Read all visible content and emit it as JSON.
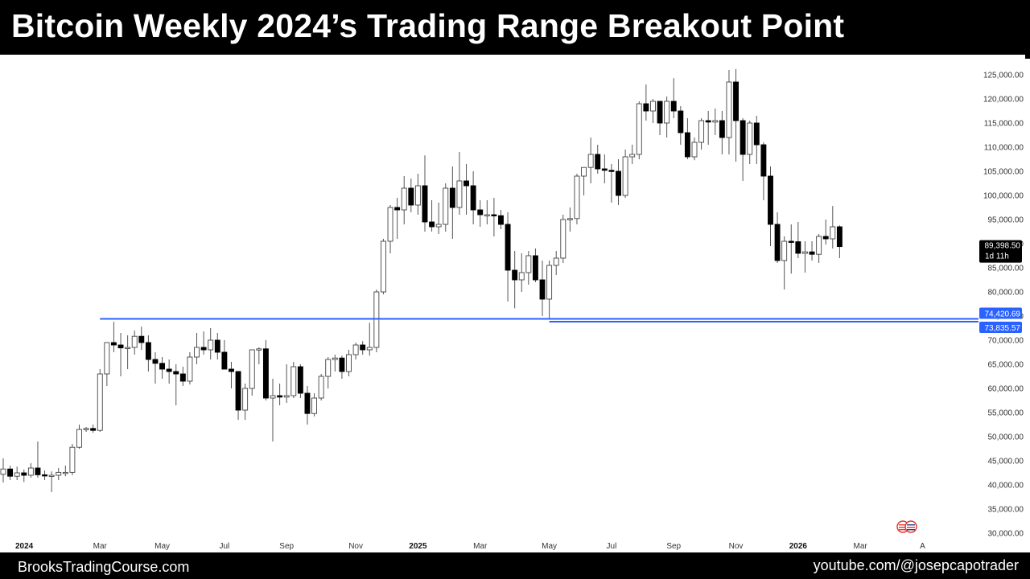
{
  "header": {
    "title": "Bitcoin Weekly 2024’s Trading Range Breakout Point"
  },
  "footer": {
    "left": "BrooksTradingCourse.com",
    "right": "youtube.com/@josepcapotrader"
  },
  "colors": {
    "bull": "#ffffff",
    "bear": "#000000",
    "wick": "#555555",
    "level": "#2962ff",
    "price_badge": "#000000",
    "level_badge": "#2962ff"
  },
  "chart_data": {
    "type": "candlestick",
    "title": "Bitcoin Weekly 2024’s Trading Range Breakout Point",
    "ylim": [
      30000,
      125000
    ],
    "y_ticks": [
      "125,000.00",
      "120,000.00",
      "115,000.00",
      "110,000.00",
      "105,000.00",
      "100,000.00",
      "95,000.00",
      "90,000.00",
      "85,000.00",
      "80,000.00",
      "75,000.00",
      "70,000.00",
      "65,000.00",
      "60,000.00",
      "55,000.00",
      "50,000.00",
      "45,000.00",
      "40,000.00",
      "35,000.00",
      "30,000.00"
    ],
    "x_ticks": [
      {
        "label": "2024",
        "week": 1,
        "bold": true
      },
      {
        "label": "Mar",
        "week": 14,
        "bold": false
      },
      {
        "label": "May",
        "week": 23,
        "bold": false
      },
      {
        "label": "Jul",
        "week": 32,
        "bold": false
      },
      {
        "label": "Sep",
        "week": 41,
        "bold": false
      },
      {
        "label": "Nov",
        "week": 51,
        "bold": false
      },
      {
        "label": "2025",
        "week": 60,
        "bold": true
      },
      {
        "label": "Mar",
        "week": 69,
        "bold": false
      },
      {
        "label": "May",
        "week": 79,
        "bold": false
      },
      {
        "label": "Jul",
        "week": 88,
        "bold": false
      },
      {
        "label": "Sep",
        "week": 97,
        "bold": false
      },
      {
        "label": "Nov",
        "week": 106,
        "bold": false
      },
      {
        "label": "2026",
        "week": 115,
        "bold": true
      },
      {
        "label": "Mar",
        "week": 124,
        "bold": false
      },
      {
        "label": "A",
        "week": 133,
        "bold": false
      }
    ],
    "candles": [
      {
        "o": 42200,
        "h": 45500,
        "l": 40500,
        "c": 43300
      },
      {
        "o": 43300,
        "h": 44000,
        "l": 41000,
        "c": 41800
      },
      {
        "o": 41800,
        "h": 43800,
        "l": 41000,
        "c": 42500
      },
      {
        "o": 42500,
        "h": 43200,
        "l": 40600,
        "c": 42000
      },
      {
        "o": 42000,
        "h": 44500,
        "l": 41500,
        "c": 43500
      },
      {
        "o": 43500,
        "h": 49000,
        "l": 41500,
        "c": 42100
      },
      {
        "o": 42100,
        "h": 43000,
        "l": 41000,
        "c": 41900
      },
      {
        "o": 41900,
        "h": 42800,
        "l": 38500,
        "c": 42000
      },
      {
        "o": 42000,
        "h": 43500,
        "l": 41000,
        "c": 42600
      },
      {
        "o": 42600,
        "h": 44000,
        "l": 41800,
        "c": 42600
      },
      {
        "o": 42600,
        "h": 48500,
        "l": 42000,
        "c": 47800
      },
      {
        "o": 47800,
        "h": 52500,
        "l": 47500,
        "c": 51500
      },
      {
        "o": 51500,
        "h": 52000,
        "l": 51000,
        "c": 51700
      },
      {
        "o": 51700,
        "h": 52500,
        "l": 50800,
        "c": 51300
      },
      {
        "o": 51300,
        "h": 64000,
        "l": 51000,
        "c": 63000
      },
      {
        "o": 63000,
        "h": 69000,
        "l": 60500,
        "c": 69500
      },
      {
        "o": 69500,
        "h": 73800,
        "l": 67500,
        "c": 69000
      },
      {
        "o": 69000,
        "h": 71500,
        "l": 62500,
        "c": 68400
      },
      {
        "o": 68400,
        "h": 71000,
        "l": 64000,
        "c": 68500
      },
      {
        "o": 68500,
        "h": 72000,
        "l": 67000,
        "c": 70800
      },
      {
        "o": 70800,
        "h": 72800,
        "l": 68000,
        "c": 69500
      },
      {
        "o": 69500,
        "h": 71000,
        "l": 63500,
        "c": 66000
      },
      {
        "o": 66000,
        "h": 67500,
        "l": 61000,
        "c": 65200
      },
      {
        "o": 65200,
        "h": 66500,
        "l": 62000,
        "c": 64000
      },
      {
        "o": 64000,
        "h": 66000,
        "l": 61000,
        "c": 63500
      },
      {
        "o": 63500,
        "h": 65000,
        "l": 56500,
        "c": 63000
      },
      {
        "o": 63000,
        "h": 64500,
        "l": 60500,
        "c": 61500
      },
      {
        "o": 61500,
        "h": 67500,
        "l": 60800,
        "c": 66500
      },
      {
        "o": 66500,
        "h": 71500,
        "l": 65000,
        "c": 68500
      },
      {
        "o": 68500,
        "h": 71800,
        "l": 67000,
        "c": 68000
      },
      {
        "o": 68000,
        "h": 72500,
        "l": 66000,
        "c": 70000
      },
      {
        "o": 70000,
        "h": 71500,
        "l": 66000,
        "c": 67500
      },
      {
        "o": 67500,
        "h": 70000,
        "l": 64000,
        "c": 64000
      },
      {
        "o": 64000,
        "h": 65500,
        "l": 60000,
        "c": 63500
      },
      {
        "o": 63500,
        "h": 63500,
        "l": 53500,
        "c": 55500
      },
      {
        "o": 55500,
        "h": 61000,
        "l": 53500,
        "c": 60000
      },
      {
        "o": 60000,
        "h": 68000,
        "l": 58500,
        "c": 68000
      },
      {
        "o": 68000,
        "h": 68500,
        "l": 65000,
        "c": 68200
      },
      {
        "o": 68200,
        "h": 70000,
        "l": 57500,
        "c": 58000
      },
      {
        "o": 58000,
        "h": 62000,
        "l": 49000,
        "c": 58500
      },
      {
        "o": 58500,
        "h": 61000,
        "l": 56500,
        "c": 58200
      },
      {
        "o": 58200,
        "h": 65000,
        "l": 57000,
        "c": 58500
      },
      {
        "o": 58500,
        "h": 65500,
        "l": 58000,
        "c": 64500
      },
      {
        "o": 64500,
        "h": 65000,
        "l": 58000,
        "c": 59000
      },
      {
        "o": 59000,
        "h": 60500,
        "l": 52500,
        "c": 54800
      },
      {
        "o": 54800,
        "h": 59000,
        "l": 54200,
        "c": 58000
      },
      {
        "o": 58000,
        "h": 63000,
        "l": 57500,
        "c": 62500
      },
      {
        "o": 62500,
        "h": 66500,
        "l": 60000,
        "c": 66000
      },
      {
        "o": 66000,
        "h": 67000,
        "l": 63500,
        "c": 66300
      },
      {
        "o": 66300,
        "h": 66800,
        "l": 62000,
        "c": 63500
      },
      {
        "o": 63500,
        "h": 68000,
        "l": 62500,
        "c": 67000
      },
      {
        "o": 67000,
        "h": 69500,
        "l": 66000,
        "c": 69000
      },
      {
        "o": 69000,
        "h": 69800,
        "l": 67000,
        "c": 68000
      },
      {
        "o": 68000,
        "h": 73600,
        "l": 66800,
        "c": 68500
      },
      {
        "o": 68500,
        "h": 80500,
        "l": 67500,
        "c": 80000
      },
      {
        "o": 80000,
        "h": 91000,
        "l": 79500,
        "c": 90500
      },
      {
        "o": 90500,
        "h": 98000,
        "l": 88000,
        "c": 97500
      },
      {
        "o": 97500,
        "h": 99500,
        "l": 91000,
        "c": 97000
      },
      {
        "o": 97000,
        "h": 104000,
        "l": 94000,
        "c": 101500
      },
      {
        "o": 101500,
        "h": 103500,
        "l": 96500,
        "c": 98000
      },
      {
        "o": 98000,
        "h": 104500,
        "l": 96000,
        "c": 102000
      },
      {
        "o": 102000,
        "h": 108300,
        "l": 92500,
        "c": 94500
      },
      {
        "o": 94500,
        "h": 99000,
        "l": 92500,
        "c": 93500
      },
      {
        "o": 93500,
        "h": 98500,
        "l": 92000,
        "c": 94000
      },
      {
        "o": 94000,
        "h": 102500,
        "l": 92500,
        "c": 101500
      },
      {
        "o": 101500,
        "h": 106000,
        "l": 91000,
        "c": 97500
      },
      {
        "o": 97500,
        "h": 109000,
        "l": 96000,
        "c": 103000
      },
      {
        "o": 103000,
        "h": 106500,
        "l": 96000,
        "c": 102000
      },
      {
        "o": 102000,
        "h": 105000,
        "l": 94000,
        "c": 97000
      },
      {
        "o": 97000,
        "h": 99000,
        "l": 93500,
        "c": 96000
      },
      {
        "o": 96000,
        "h": 99000,
        "l": 94000,
        "c": 96000
      },
      {
        "o": 96000,
        "h": 99500,
        "l": 91500,
        "c": 95800
      },
      {
        "o": 95800,
        "h": 97000,
        "l": 93000,
        "c": 94000
      },
      {
        "o": 94000,
        "h": 96500,
        "l": 78000,
        "c": 84500
      },
      {
        "o": 84500,
        "h": 88500,
        "l": 76600,
        "c": 82500
      },
      {
        "o": 82500,
        "h": 88000,
        "l": 80000,
        "c": 84000
      },
      {
        "o": 84000,
        "h": 88500,
        "l": 81500,
        "c": 87500
      },
      {
        "o": 87500,
        "h": 89000,
        "l": 82000,
        "c": 82500
      },
      {
        "o": 82500,
        "h": 86500,
        "l": 75000,
        "c": 78500
      },
      {
        "o": 78500,
        "h": 86500,
        "l": 74500,
        "c": 85500
      },
      {
        "o": 85500,
        "h": 88500,
        "l": 83500,
        "c": 87000
      },
      {
        "o": 87000,
        "h": 96000,
        "l": 86000,
        "c": 95000
      },
      {
        "o": 95000,
        "h": 97500,
        "l": 92500,
        "c": 95200
      },
      {
        "o": 95200,
        "h": 104500,
        "l": 94000,
        "c": 104000
      },
      {
        "o": 104000,
        "h": 105500,
        "l": 100000,
        "c": 105800
      },
      {
        "o": 105800,
        "h": 112000,
        "l": 102500,
        "c": 108500
      },
      {
        "o": 108500,
        "h": 110500,
        "l": 104500,
        "c": 105500
      },
      {
        "o": 105500,
        "h": 108500,
        "l": 102500,
        "c": 105200
      },
      {
        "o": 105200,
        "h": 106500,
        "l": 98500,
        "c": 105000
      },
      {
        "o": 105000,
        "h": 107500,
        "l": 98000,
        "c": 100000
      },
      {
        "o": 100000,
        "h": 109500,
        "l": 99500,
        "c": 108000
      },
      {
        "o": 108000,
        "h": 110500,
        "l": 106500,
        "c": 108500
      },
      {
        "o": 108500,
        "h": 119500,
        "l": 107500,
        "c": 119000
      },
      {
        "o": 119000,
        "h": 123000,
        "l": 115500,
        "c": 117500
      },
      {
        "o": 117500,
        "h": 120000,
        "l": 115000,
        "c": 119500
      },
      {
        "o": 119500,
        "h": 119500,
        "l": 112500,
        "c": 115000
      },
      {
        "o": 115000,
        "h": 120500,
        "l": 112000,
        "c": 119500
      },
      {
        "o": 119500,
        "h": 124300,
        "l": 116000,
        "c": 117500
      },
      {
        "o": 117500,
        "h": 118500,
        "l": 110500,
        "c": 113000
      },
      {
        "o": 113000,
        "h": 116000,
        "l": 107500,
        "c": 108000
      },
      {
        "o": 108000,
        "h": 112000,
        "l": 107300,
        "c": 111000
      },
      {
        "o": 111000,
        "h": 116000,
        "l": 109500,
        "c": 115500
      },
      {
        "o": 115500,
        "h": 117500,
        "l": 110500,
        "c": 115200
      },
      {
        "o": 115200,
        "h": 118000,
        "l": 112500,
        "c": 115500
      },
      {
        "o": 115500,
        "h": 117500,
        "l": 108500,
        "c": 112000
      },
      {
        "o": 112000,
        "h": 126000,
        "l": 108500,
        "c": 123500
      },
      {
        "o": 123500,
        "h": 126200,
        "l": 107000,
        "c": 115500
      },
      {
        "o": 115500,
        "h": 116000,
        "l": 103000,
        "c": 108500
      },
      {
        "o": 108500,
        "h": 115500,
        "l": 106500,
        "c": 115000
      },
      {
        "o": 115000,
        "h": 116500,
        "l": 106500,
        "c": 110500
      },
      {
        "o": 110500,
        "h": 111000,
        "l": 99000,
        "c": 104000
      },
      {
        "o": 104000,
        "h": 106000,
        "l": 89500,
        "c": 94000
      },
      {
        "o": 94000,
        "h": 96500,
        "l": 86000,
        "c": 86500
      },
      {
        "o": 86500,
        "h": 91500,
        "l": 80500,
        "c": 90500
      },
      {
        "o": 90500,
        "h": 94000,
        "l": 83800,
        "c": 90400
      },
      {
        "o": 90400,
        "h": 94500,
        "l": 87000,
        "c": 88000
      },
      {
        "o": 88000,
        "h": 90500,
        "l": 84000,
        "c": 88300
      },
      {
        "o": 88300,
        "h": 90500,
        "l": 86500,
        "c": 87800
      },
      {
        "o": 87800,
        "h": 92000,
        "l": 86000,
        "c": 91500
      },
      {
        "o": 91500,
        "h": 95000,
        "l": 89800,
        "c": 91000
      },
      {
        "o": 91000,
        "h": 97800,
        "l": 89000,
        "c": 93500
      },
      {
        "o": 93500,
        "h": 93800,
        "l": 87000,
        "c": 89398.5
      }
    ],
    "levels": [
      {
        "value": 74420.69,
        "label": "74,420.69",
        "start_week": 14
      },
      {
        "value": 73835.57,
        "label": "73,835.57",
        "start_week": 79
      }
    ],
    "current_price": {
      "label": "89,398.50",
      "sub": "1d 11h",
      "value": 89398.5
    }
  }
}
